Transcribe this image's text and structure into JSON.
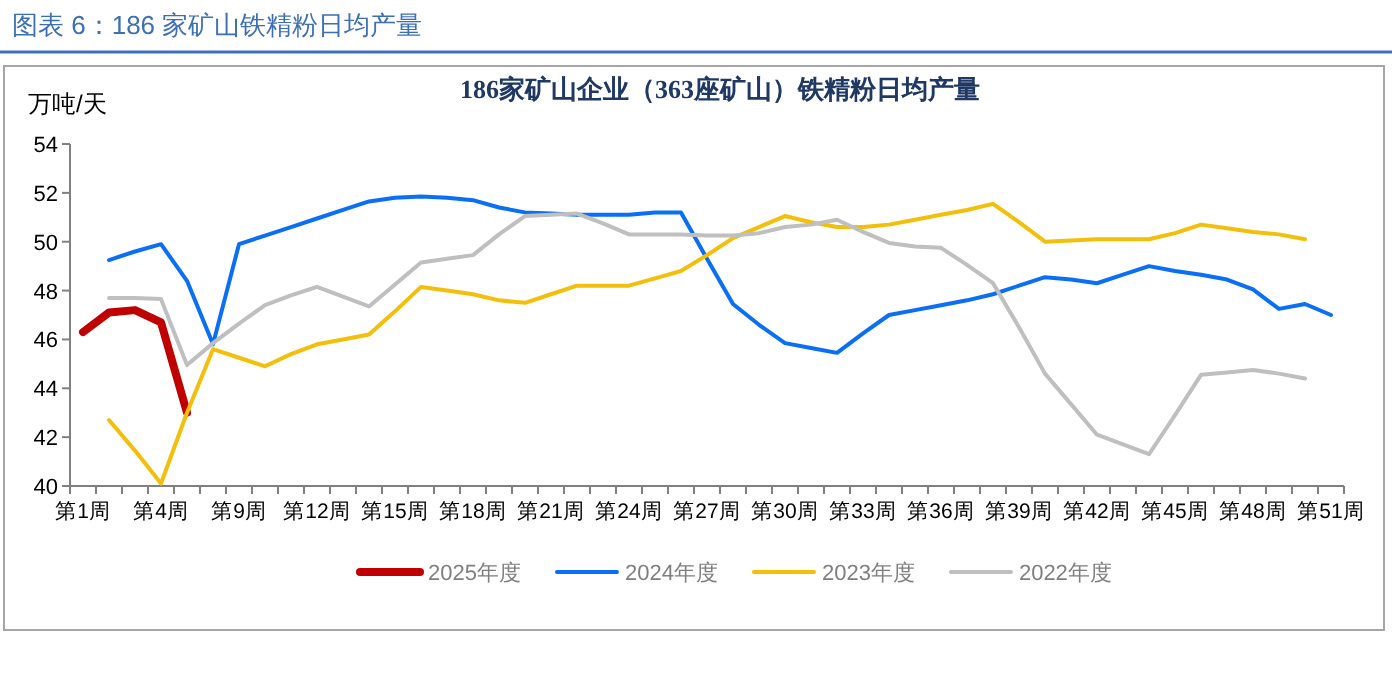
{
  "chart_data": {
    "type": "line",
    "title": "186家矿山企业（363座矿山）铁精粉日均产量",
    "ylabel": "万吨/天",
    "annotations": [
      "图表 6：186 家矿山铁精粉日均产量"
    ],
    "categories": [
      "第1周",
      null,
      null,
      "第4周",
      null,
      null,
      "第9周",
      null,
      null,
      "第12周",
      null,
      null,
      "第15周",
      null,
      null,
      "第18周",
      null,
      null,
      "第21周",
      null,
      null,
      "第24周",
      null,
      null,
      "第27周",
      null,
      null,
      "第30周",
      null,
      null,
      "第33周",
      null,
      null,
      "第36周",
      null,
      null,
      "第39周",
      null,
      null,
      "第42周",
      null,
      null,
      "第45周",
      null,
      null,
      "第48周",
      null,
      null,
      "第51周"
    ],
    "ylim": [
      40,
      54
    ],
    "yticks": [
      40,
      42,
      44,
      46,
      48,
      50,
      52,
      54
    ],
    "legend": "bottom",
    "grid": false,
    "marker": "none",
    "series": [
      {
        "name": "2025年度",
        "color": "#c00000",
        "values": [
          46.3,
          47.1,
          47.2,
          46.7,
          43.0,
          null,
          null,
          null,
          null,
          null,
          null,
          null,
          null,
          null,
          null,
          null,
          null,
          null,
          null,
          null,
          null,
          null,
          null,
          null,
          null,
          null,
          null,
          null,
          null,
          null,
          null,
          null,
          null,
          null,
          null,
          null,
          null,
          null,
          null,
          null,
          null,
          null,
          null,
          null,
          null,
          null,
          null,
          null,
          null
        ]
      },
      {
        "name": "2024年度",
        "color": "#0a6ff5",
        "values": [
          null,
          49.25,
          49.6,
          49.9,
          48.4,
          45.8,
          49.9,
          50.25,
          50.6,
          50.95,
          51.3,
          51.65,
          51.8,
          51.85,
          51.8,
          51.7,
          51.4,
          51.2,
          51.15,
          51.1,
          51.1,
          51.1,
          51.2,
          51.2,
          49.3,
          47.45,
          46.6,
          45.85,
          45.65,
          45.45,
          46.25,
          47.0,
          47.2,
          47.4,
          47.6,
          47.85,
          48.2,
          48.55,
          48.45,
          48.3,
          48.65,
          49.0,
          48.8,
          48.65,
          48.45,
          48.05,
          47.25,
          47.45,
          47.0
        ]
      },
      {
        "name": "2023年度",
        "color": "#f2bf0a",
        "values": [
          null,
          42.7,
          41.45,
          40.1,
          43.0,
          45.6,
          45.25,
          44.9,
          45.4,
          45.8,
          46.0,
          46.2,
          47.15,
          48.15,
          48.0,
          47.85,
          47.6,
          47.5,
          47.85,
          48.2,
          48.2,
          48.2,
          48.5,
          48.8,
          49.45,
          50.15,
          50.6,
          51.05,
          50.8,
          50.6,
          50.6,
          50.7,
          50.9,
          51.1,
          51.3,
          51.55,
          50.8,
          50.0,
          50.05,
          50.1,
          50.1,
          50.1,
          50.35,
          50.7,
          50.55,
          50.4,
          50.3,
          50.1,
          null
        ]
      },
      {
        "name": "2022年度",
        "color": "#bfbfbf",
        "values": [
          null,
          47.7,
          47.7,
          47.65,
          44.95,
          45.85,
          46.65,
          47.4,
          47.8,
          48.15,
          47.75,
          47.35,
          48.25,
          49.15,
          49.3,
          49.45,
          50.3,
          51.05,
          51.1,
          51.15,
          50.75,
          50.3,
          50.3,
          50.3,
          50.25,
          50.25,
          50.35,
          50.6,
          50.7,
          50.9,
          50.4,
          49.95,
          49.8,
          49.75,
          49.05,
          48.3,
          46.5,
          44.6,
          43.35,
          42.1,
          41.7,
          41.3,
          42.9,
          44.55,
          44.65,
          44.75,
          44.6,
          44.4,
          null
        ]
      }
    ]
  }
}
